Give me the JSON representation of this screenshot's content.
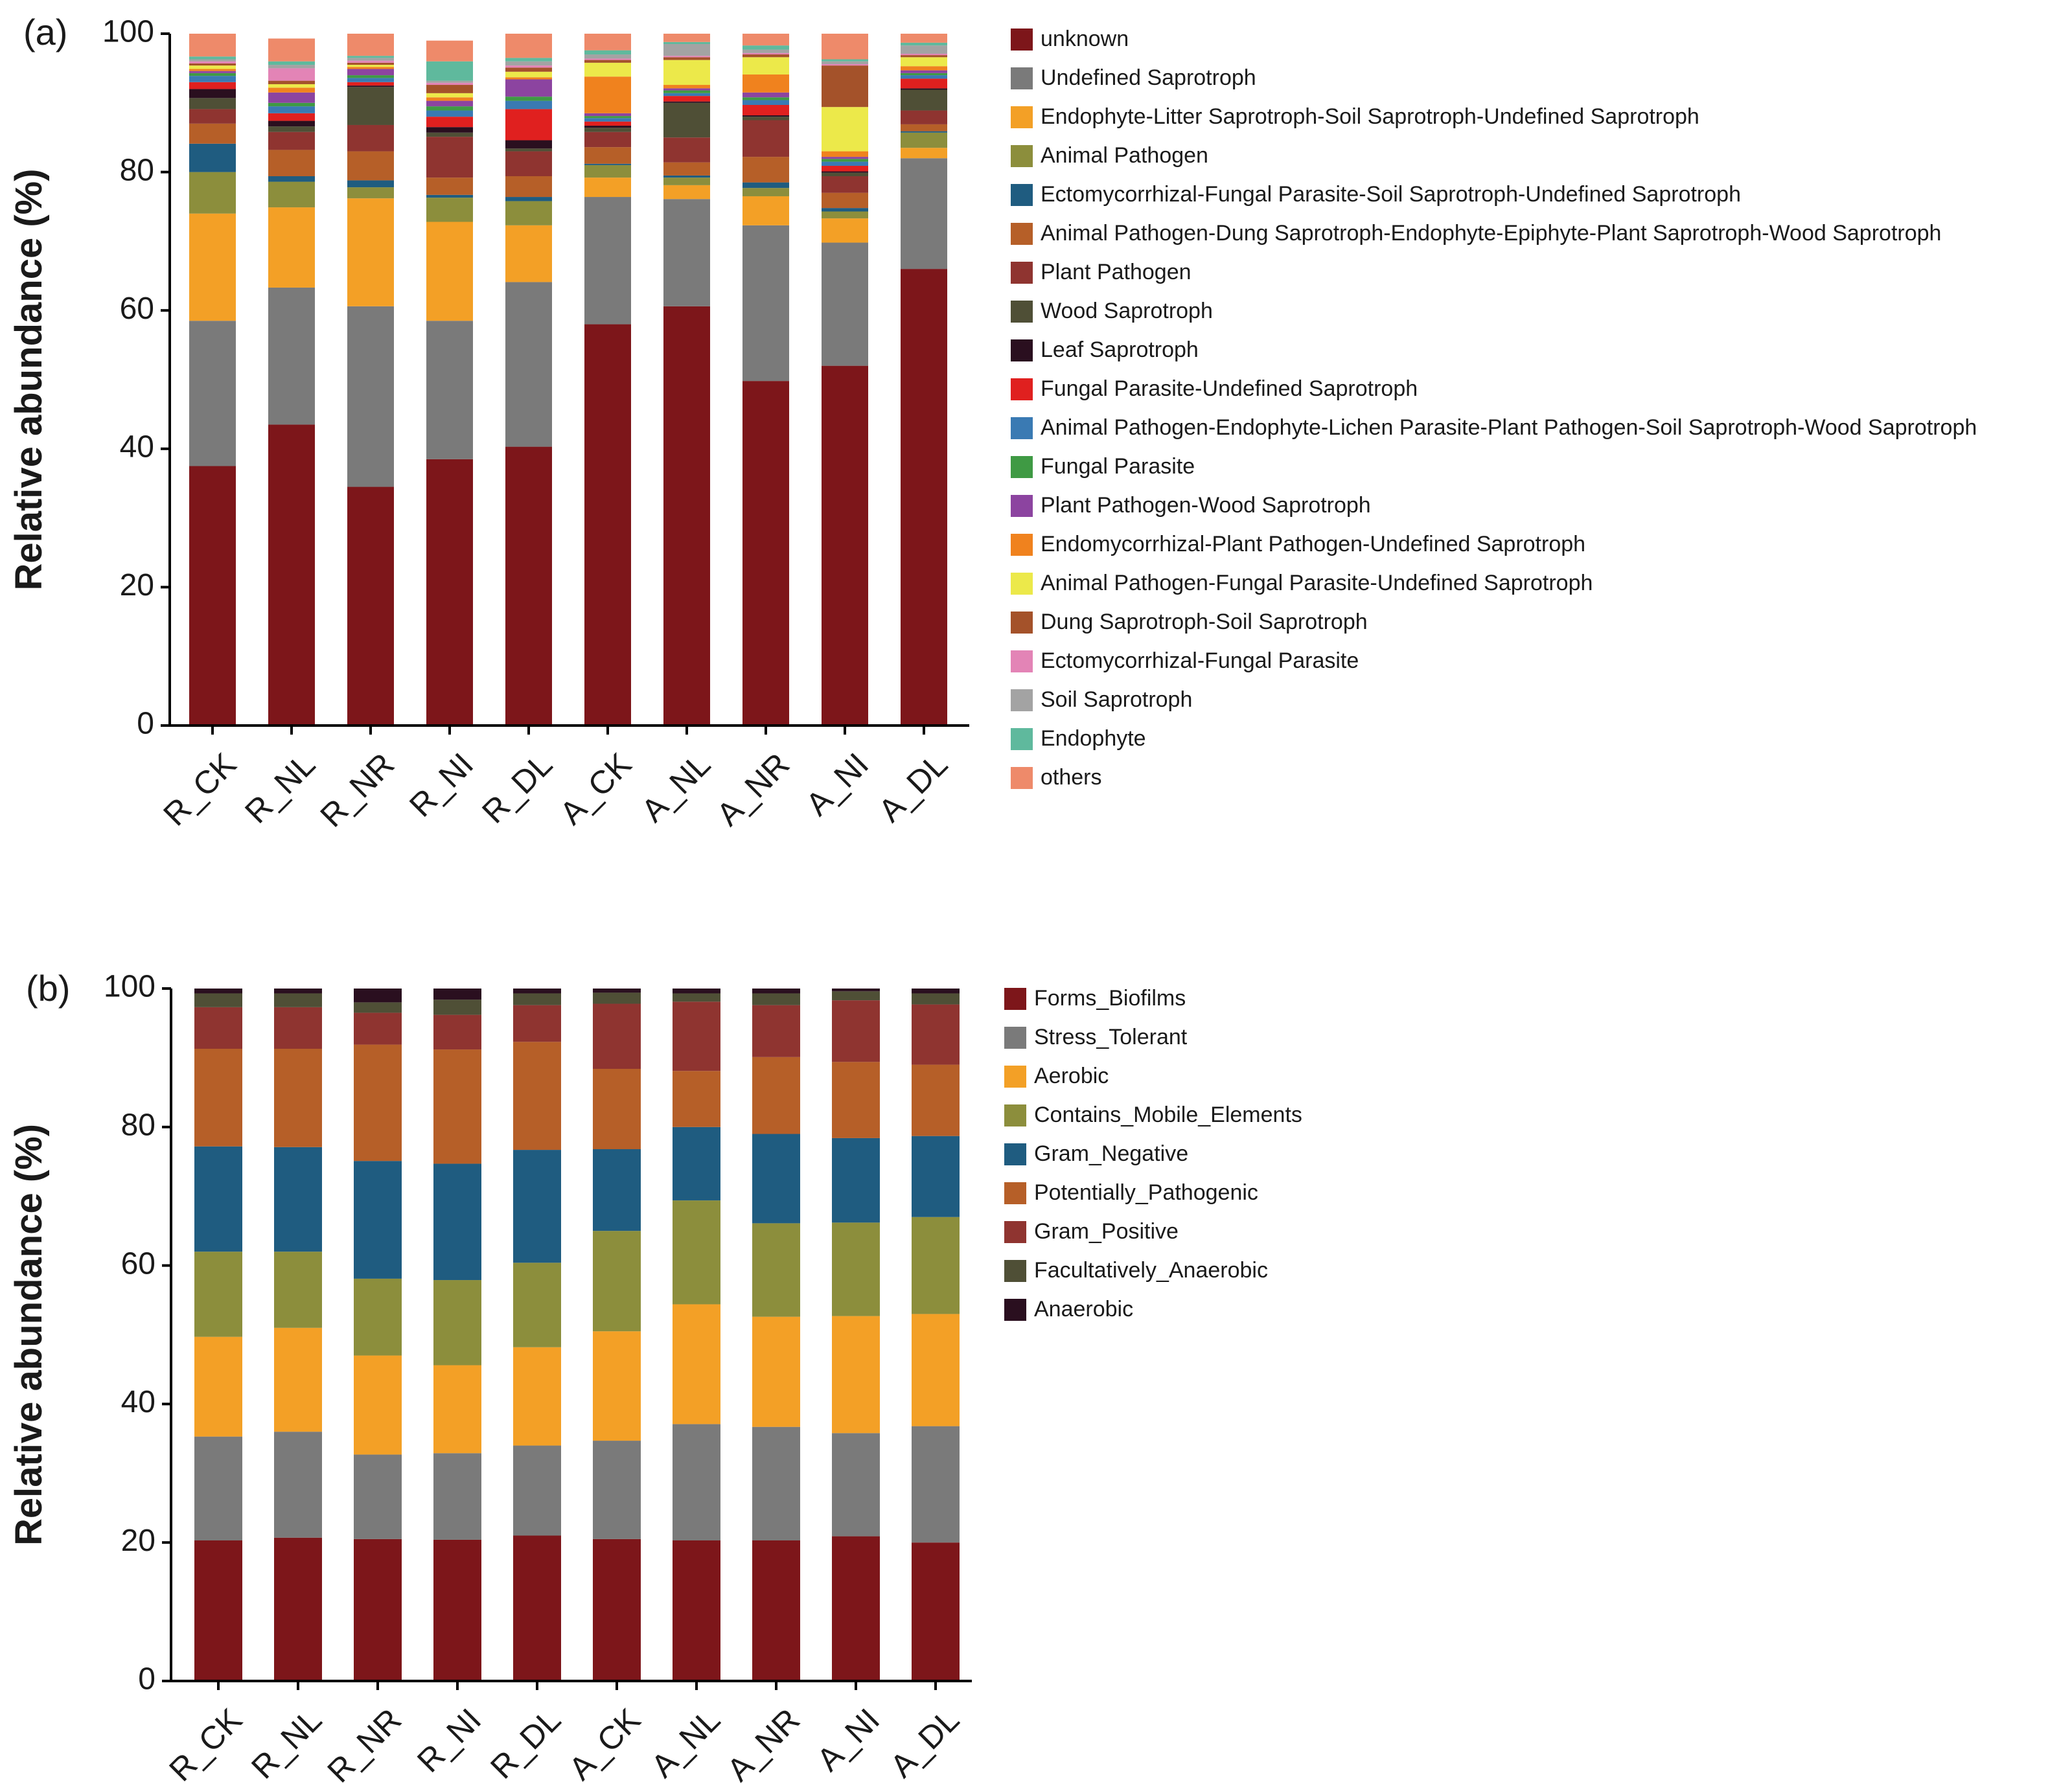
{
  "chart_data": [
    {
      "type": "bar",
      "stacked": true,
      "panel_label": "(a)",
      "title": "",
      "xlabel": "",
      "ylabel": "Relative abundance (%)",
      "ylim": [
        0,
        100
      ],
      "yticks": [
        0,
        20,
        40,
        60,
        80,
        100
      ],
      "legend_position": "right",
      "categories": [
        "R_CK",
        "R_NL",
        "R_NR",
        "R_NI",
        "R_DL",
        "A_CK",
        "A_NL",
        "A_NR",
        "A_NI",
        "A_DL"
      ],
      "series": [
        {
          "name": "unknown",
          "color": "#7d161a",
          "values": [
            37.5,
            43.5,
            34.5,
            38.5,
            40.3,
            58.0,
            60.6,
            49.8,
            52.0,
            66.0
          ]
        },
        {
          "name": "Undefined Saprotroph",
          "color": "#7a7a7a",
          "values": [
            21.0,
            19.8,
            26.1,
            20.0,
            23.8,
            18.4,
            15.5,
            22.5,
            17.8,
            16.0
          ]
        },
        {
          "name": "Endophyte-Litter Saprotroph-Soil Saprotroph-Undefined Saprotroph",
          "color": "#f3a026",
          "values": [
            15.5,
            11.6,
            15.6,
            14.3,
            8.2,
            2.8,
            2.0,
            4.2,
            3.5,
            1.5
          ]
        },
        {
          "name": "Animal Pathogen",
          "color": "#8c8e3c",
          "values": [
            6.0,
            3.7,
            1.6,
            3.5,
            3.5,
            1.8,
            1.1,
            1.2,
            1.0,
            2.2
          ]
        },
        {
          "name": "Ectomycorrhizal-Fungal Parasite-Soil Saprotroph-Undefined Saprotroph",
          "color": "#1f5c80",
          "values": [
            4.1,
            0.8,
            1.0,
            0.4,
            0.6,
            0.2,
            0.3,
            0.8,
            0.5,
            0.2
          ]
        },
        {
          "name": "Animal Pathogen-Dung Saprotroph-Endophyte-Epiphyte-Plant Saprotroph-Wood Saprotroph",
          "color": "#b65f28",
          "values": [
            2.9,
            3.8,
            4.2,
            2.5,
            3.0,
            2.4,
            1.9,
            3.7,
            2.2,
            1.0
          ]
        },
        {
          "name": "Plant Pathogen",
          "color": "#8f3430",
          "values": [
            2.1,
            2.6,
            3.8,
            5.9,
            3.6,
            2.2,
            3.6,
            5.3,
            2.4,
            2.0
          ]
        },
        {
          "name": "Wood Saprotroph",
          "color": "#4f4f36",
          "values": [
            1.6,
            0.8,
            5.5,
            0.6,
            0.4,
            0.6,
            5.0,
            0.5,
            0.5,
            3.0
          ]
        },
        {
          "name": "Leaf Saprotroph",
          "color": "#2a0f1f",
          "values": [
            1.3,
            0.8,
            0.2,
            0.8,
            1.2,
            0.3,
            0.2,
            0.2,
            0.2,
            0.2
          ]
        },
        {
          "name": "Fungal Parasite-Undefined Saprotroph",
          "color": "#e0201f",
          "values": [
            1.0,
            1.1,
            0.5,
            1.5,
            4.5,
            0.6,
            0.8,
            1.5,
            0.8,
            1.4
          ]
        },
        {
          "name": "Animal Pathogen-Endophyte-Lichen Parasite-Plant Pathogen-Soil Saprotroph-Wood Saprotroph",
          "color": "#3a7ab3",
          "values": [
            0.9,
            1.0,
            0.6,
            0.9,
            1.2,
            0.5,
            0.4,
            0.7,
            0.6,
            0.5
          ]
        },
        {
          "name": "Fungal Parasite",
          "color": "#3f9a44",
          "values": [
            0.4,
            0.5,
            0.4,
            0.6,
            0.6,
            0.3,
            0.4,
            0.4,
            0.4,
            0.3
          ]
        },
        {
          "name": "Plant Pathogen-Wood Saprotroph",
          "color": "#8c44a0",
          "values": [
            0.3,
            1.5,
            0.9,
            0.8,
            2.5,
            0.4,
            0.3,
            0.7,
            0.3,
            0.4
          ]
        },
        {
          "name": "Endomycorrhizal-Plant Pathogen-Undefined Saprotroph",
          "color": "#f0821e",
          "values": [
            0.3,
            0.7,
            0.3,
            0.5,
            0.3,
            5.3,
            0.5,
            2.6,
            0.8,
            0.6
          ]
        },
        {
          "name": "Animal Pathogen-Fungal Parasite-Undefined Saprotroph",
          "color": "#ece94a",
          "values": [
            0.5,
            0.5,
            0.3,
            0.6,
            0.8,
            2.0,
            3.6,
            2.5,
            6.4,
            1.3
          ]
        },
        {
          "name": "Dung Saprotroph-Soil Saprotroph",
          "color": "#a4522a",
          "values": [
            0.3,
            0.5,
            0.3,
            1.2,
            0.6,
            0.4,
            0.4,
            0.4,
            6.0,
            0.3
          ]
        },
        {
          "name": "Ectomycorrhizal-Fungal Parasite",
          "color": "#e384b6",
          "values": [
            0.3,
            1.8,
            0.3,
            0.3,
            0.3,
            0.2,
            0.2,
            0.2,
            0.2,
            0.2
          ]
        },
        {
          "name": "Soil Saprotroph",
          "color": "#a3a3a3",
          "values": [
            0.3,
            0.5,
            0.4,
            0.3,
            0.6,
            0.6,
            1.7,
            0.5,
            0.4,
            1.2
          ]
        },
        {
          "name": "Endophyte",
          "color": "#5fb99d",
          "values": [
            0.4,
            0.5,
            0.3,
            2.8,
            0.5,
            0.6,
            0.3,
            0.6,
            0.3,
            0.4
          ]
        },
        {
          "name": "others",
          "color": "#ee8a6a",
          "values": [
            3.3,
            3.3,
            3.2,
            3.0,
            3.6,
            2.4,
            1.3,
            2.5,
            3.7,
            1.3
          ]
        }
      ]
    },
    {
      "type": "bar",
      "stacked": true,
      "panel_label": "(b)",
      "title": "",
      "xlabel": "",
      "ylabel": "Relative abundance (%)",
      "ylim": [
        0,
        100
      ],
      "yticks": [
        0,
        20,
        40,
        60,
        80,
        100
      ],
      "legend_position": "right",
      "categories": [
        "R_CK",
        "R_NL",
        "R_NR",
        "R_NI",
        "R_DL",
        "A_CK",
        "A_NL",
        "A_NR",
        "A_NI",
        "A_DL"
      ],
      "series": [
        {
          "name": "Forms_Biofilms",
          "color": "#7d161a",
          "values": [
            20.3,
            20.7,
            20.5,
            20.4,
            21.0,
            20.5,
            20.3,
            20.3,
            20.9,
            20.0
          ]
        },
        {
          "name": "Stress_Tolerant",
          "color": "#7a7a7a",
          "values": [
            15.0,
            15.3,
            12.2,
            12.5,
            13.0,
            14.2,
            16.8,
            16.4,
            14.9,
            16.8
          ]
        },
        {
          "name": "Aerobic",
          "color": "#f3a026",
          "values": [
            14.4,
            15.0,
            14.3,
            12.7,
            14.2,
            15.8,
            17.3,
            15.9,
            16.9,
            16.2
          ]
        },
        {
          "name": "Contains_Mobile_Elements",
          "color": "#8c8e3c",
          "values": [
            12.3,
            11.0,
            11.1,
            12.3,
            12.2,
            14.5,
            15.0,
            13.5,
            13.5,
            14.0
          ]
        },
        {
          "name": "Gram_Negative",
          "color": "#1f5c80",
          "values": [
            15.2,
            15.1,
            17.0,
            16.8,
            16.3,
            11.8,
            10.6,
            12.9,
            12.2,
            11.7
          ]
        },
        {
          "name": "Potentially_Pathogenic",
          "color": "#b65f28",
          "values": [
            14.1,
            14.2,
            16.8,
            16.5,
            15.6,
            11.6,
            8.1,
            11.1,
            11.0,
            10.3
          ]
        },
        {
          "name": "Gram_Positive",
          "color": "#8f3430",
          "values": [
            6.0,
            6.0,
            4.6,
            5.0,
            5.3,
            9.4,
            10.0,
            7.5,
            8.9,
            8.7
          ]
        },
        {
          "name": "Facultatively_Anaerobic",
          "color": "#4f4f36",
          "values": [
            2.0,
            2.0,
            1.5,
            2.2,
            1.7,
            1.6,
            1.2,
            1.7,
            1.3,
            1.6
          ]
        },
        {
          "name": "Anaerobic",
          "color": "#2a0f1f",
          "values": [
            0.7,
            0.7,
            2.0,
            1.6,
            0.7,
            0.6,
            0.7,
            0.7,
            0.4,
            0.7
          ]
        }
      ]
    }
  ]
}
